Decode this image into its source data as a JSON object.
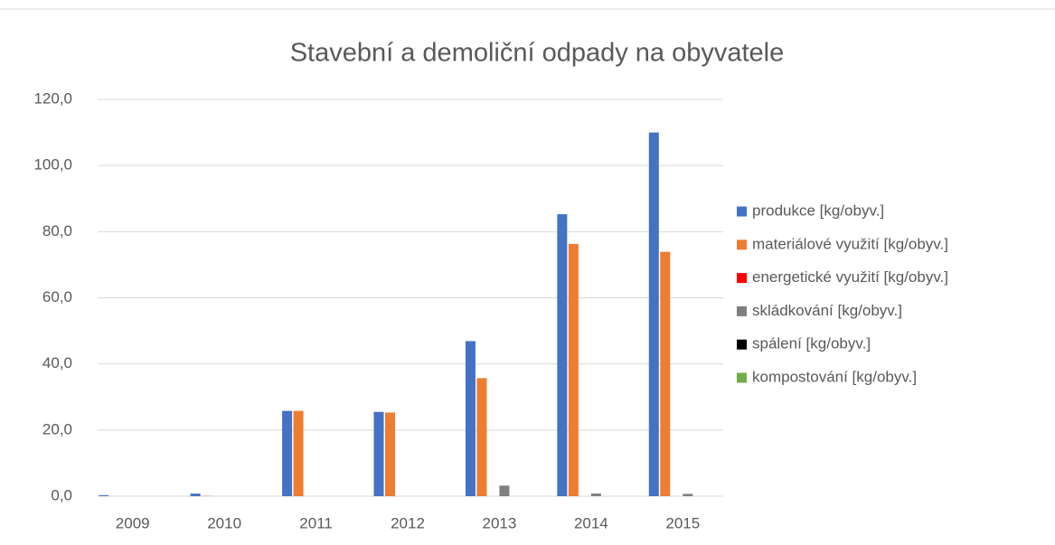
{
  "chart_data": {
    "type": "bar",
    "title": "Stavební a demoliční odpady na obyvatele",
    "categories": [
      "2009",
      "2010",
      "2011",
      "2012",
      "2013",
      "2014",
      "2015"
    ],
    "series": [
      {
        "name": "produkce  [kg/obyv.]",
        "color": "#4472c4",
        "values": [
          0.3,
          0.8,
          25.8,
          25.5,
          46.9,
          85.3,
          110.0
        ]
      },
      {
        "name": "materiálové využití  [kg/obyv.]",
        "color": "#ed7d31",
        "values": [
          0,
          0.1,
          25.8,
          25.3,
          35.7,
          76.3,
          73.9
        ]
      },
      {
        "name": "energetické využití [kg/obyv.]",
        "color": "#ff0000",
        "values": [
          0,
          0,
          0,
          0,
          0,
          0,
          0
        ]
      },
      {
        "name": "skládkování [kg/obyv.]",
        "color": "#7f7f7f",
        "values": [
          0,
          0,
          0,
          0,
          3.2,
          0.8,
          0.7
        ]
      },
      {
        "name": "spálení [kg/obyv.]",
        "color": "#000000",
        "values": [
          0,
          0,
          0,
          0,
          0,
          0,
          0
        ]
      },
      {
        "name": "kompostování  [kg/obyv.]",
        "color": "#70ad47",
        "values": [
          0,
          0,
          0,
          0,
          0,
          0,
          0
        ]
      }
    ],
    "ylim": [
      0,
      120
    ],
    "yticks": [
      {
        "value": 0,
        "label": "0,0"
      },
      {
        "value": 20,
        "label": "20,0"
      },
      {
        "value": 40,
        "label": "40,0"
      },
      {
        "value": 60,
        "label": "60,0"
      },
      {
        "value": 80,
        "label": "80,0"
      },
      {
        "value": 100,
        "label": "100,0"
      },
      {
        "value": 120,
        "label": "120,0"
      }
    ],
    "grid": true,
    "legend": "right"
  }
}
